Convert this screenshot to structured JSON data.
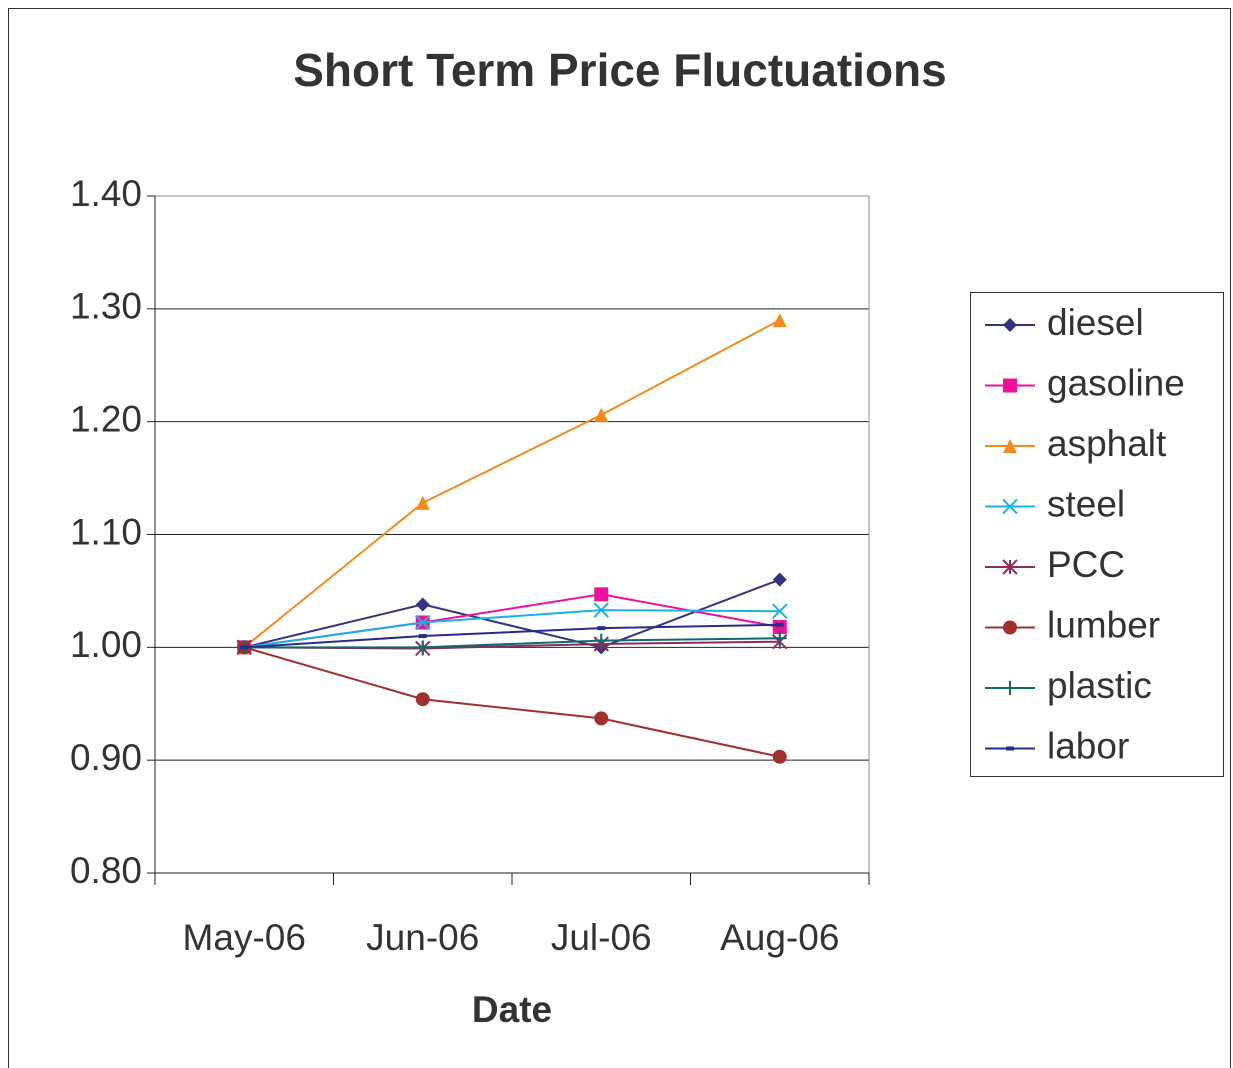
{
  "chart_data": {
    "type": "line",
    "title": "Short Term Price Fluctuations",
    "x_label": "Date",
    "categories": [
      "May-06",
      "Jun-06",
      "Jul-06",
      "Aug-06"
    ],
    "ylim": [
      0.8,
      1.4
    ],
    "yticks": [
      {
        "value": 0.8,
        "label": "0.80"
      },
      {
        "value": 0.9,
        "label": "0.90"
      },
      {
        "value": 1,
        "label": "1.00"
      },
      {
        "value": 1.1,
        "label": "1.10"
      },
      {
        "value": 1.2,
        "label": "1.20"
      },
      {
        "value": 1.3,
        "label": "1.30"
      },
      {
        "value": 1.4,
        "label": "1.40"
      }
    ],
    "grid": true,
    "legend": "right",
    "series": [
      {
        "name": "diesel",
        "color": "#333380",
        "marker": "diamond",
        "values": [
          1.0,
          1.038,
          1.0,
          1.06
        ]
      },
      {
        "name": "gasoline",
        "color": "#ee1199",
        "marker": "square",
        "values": [
          1.0,
          1.022,
          1.047,
          1.018
        ]
      },
      {
        "name": "asphalt",
        "color": "#f58a1f",
        "marker": "triangle",
        "values": [
          1.0,
          1.128,
          1.206,
          1.29
        ]
      },
      {
        "name": "steel",
        "color": "#1ab2e6",
        "marker": "x",
        "values": [
          1.0,
          1.022,
          1.033,
          1.032
        ]
      },
      {
        "name": "PCC",
        "color": "#8a2c5c",
        "marker": "asterisk",
        "values": [
          1.0,
          0.999,
          1.003,
          1.005
        ]
      },
      {
        "name": "lumber",
        "color": "#a0302e",
        "marker": "circle",
        "values": [
          1.0,
          0.954,
          0.937,
          0.903
        ]
      },
      {
        "name": "plastic",
        "color": "#0d6b6b",
        "marker": "plus",
        "values": [
          1.0,
          1.0,
          1.006,
          1.008
        ]
      },
      {
        "name": "labor",
        "color": "#2a2a8a",
        "marker": "dash",
        "values": [
          1.0,
          1.01,
          1.017,
          1.02
        ]
      }
    ]
  }
}
